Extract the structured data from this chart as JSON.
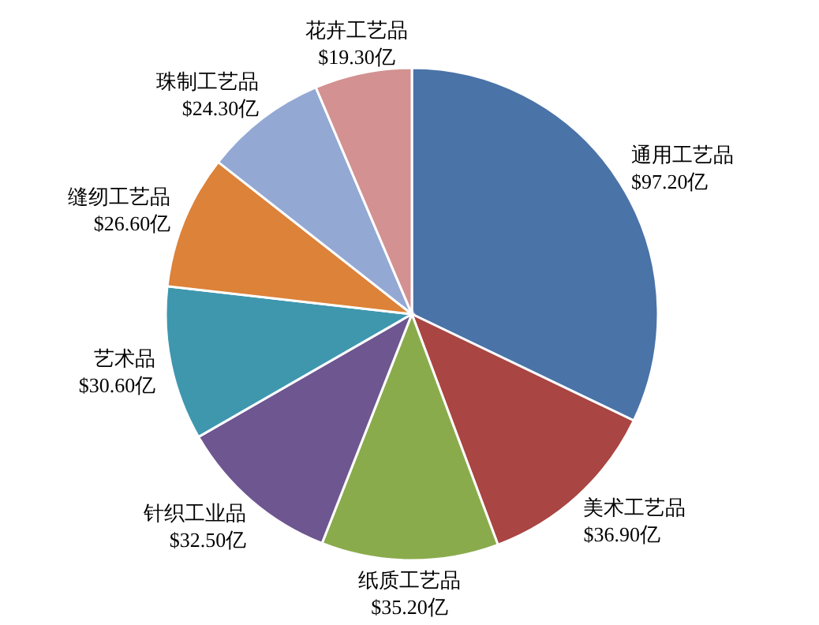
{
  "chart_data": {
    "type": "pie",
    "categories": [
      "通用工艺品",
      "美术工艺品",
      "纸质工艺品",
      "针织工业品",
      "艺术品",
      "缝纫工艺品",
      "珠制工艺品",
      "花卉工艺品"
    ],
    "values": [
      97.2,
      36.9,
      35.2,
      32.5,
      30.6,
      26.6,
      24.3,
      19.3
    ],
    "value_labels": [
      "$97.20亿",
      "$36.90亿",
      "$35.20亿",
      "$32.50亿",
      "$30.60亿",
      "$26.60亿",
      "$24.30亿",
      "$19.30亿"
    ],
    "colors": [
      "#4a73a8",
      "#a94542",
      "#8aab4c",
      "#6e5690",
      "#3f97ae",
      "#dc8239",
      "#93a8d3",
      "#d39191"
    ]
  }
}
